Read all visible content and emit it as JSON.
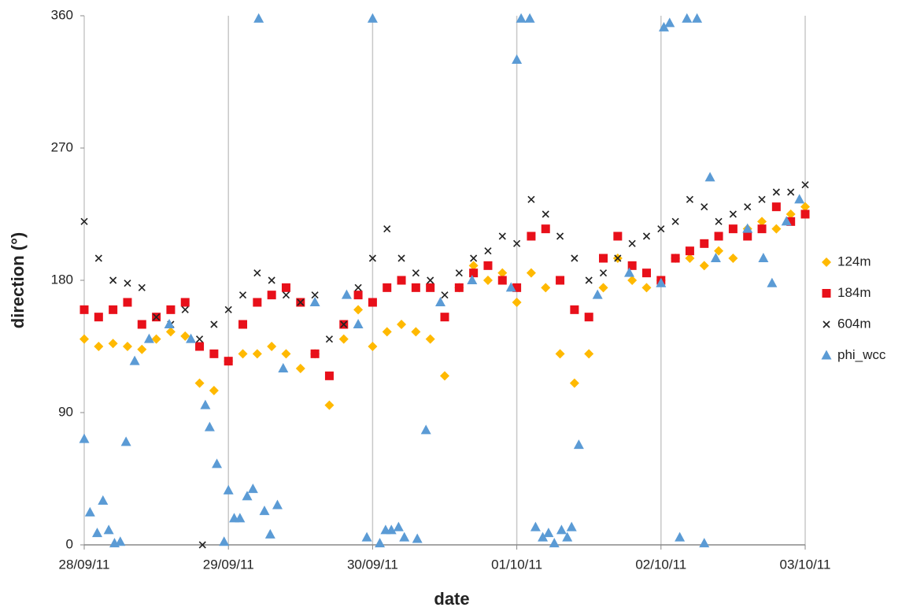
{
  "chart_data": {
    "type": "scatter",
    "x_label": "date",
    "y_label": "direction (°)",
    "xlim": [
      0,
      5
    ],
    "ylim": [
      0,
      360
    ],
    "xticks": [
      {
        "value": 0,
        "label": "28/09/11"
      },
      {
        "value": 1,
        "label": "29/09/11"
      },
      {
        "value": 2,
        "label": "30/09/11"
      },
      {
        "value": 3,
        "label": "01/10/11"
      },
      {
        "value": 4,
        "label": "02/10/11"
      },
      {
        "value": 5,
        "label": "03/10/11"
      }
    ],
    "yticks": [
      0,
      90,
      180,
      270,
      360
    ],
    "grid": "x",
    "legend": "right",
    "series": [
      {
        "name": "124m",
        "color": "#ffb900",
        "marker": "diamond",
        "x": [
          0,
          0.1,
          0.2,
          0.3,
          0.4,
          0.5,
          0.6,
          0.7,
          0.8,
          0.9,
          1,
          1.1,
          1.2,
          1.3,
          1.4,
          1.5,
          1.6,
          1.7,
          1.8,
          1.9,
          2,
          2.1,
          2.2,
          2.3,
          2.4,
          2.5,
          2.6,
          2.7,
          2.8,
          2.9,
          3,
          3.1,
          3.2,
          3.3,
          3.4,
          3.5,
          3.6,
          3.7,
          3.8,
          3.9,
          4,
          4.1,
          4.2,
          4.3,
          4.4,
          4.5,
          4.6,
          4.7,
          4.8,
          4.9,
          5
        ],
        "values": [
          140,
          135,
          137,
          135,
          133,
          140,
          145,
          142,
          110,
          105,
          125,
          130,
          130,
          135,
          130,
          120,
          130,
          95,
          140,
          160,
          135,
          145,
          150,
          145,
          140,
          115,
          175,
          190,
          180,
          185,
          165,
          185,
          175,
          130,
          110,
          130,
          175,
          195,
          180,
          175,
          180,
          195,
          195,
          190,
          200,
          195,
          215,
          220,
          215,
          225,
          230
        ]
      },
      {
        "name": "184m",
        "color": "#e8101a",
        "marker": "square",
        "x": [
          0,
          0.1,
          0.2,
          0.3,
          0.4,
          0.5,
          0.6,
          0.7,
          0.8,
          0.9,
          1,
          1.1,
          1.2,
          1.3,
          1.4,
          1.5,
          1.6,
          1.7,
          1.8,
          1.9,
          2,
          2.1,
          2.2,
          2.3,
          2.4,
          2.5,
          2.6,
          2.7,
          2.8,
          2.9,
          3,
          3.1,
          3.2,
          3.3,
          3.4,
          3.5,
          3.6,
          3.7,
          3.8,
          3.9,
          4,
          4.1,
          4.2,
          4.3,
          4.4,
          4.5,
          4.6,
          4.7,
          4.8,
          4.9,
          5
        ],
        "values": [
          160,
          155,
          160,
          165,
          150,
          155,
          160,
          165,
          135,
          130,
          125,
          150,
          165,
          170,
          175,
          165,
          130,
          115,
          150,
          170,
          165,
          175,
          180,
          175,
          175,
          155,
          175,
          185,
          190,
          180,
          175,
          210,
          215,
          180,
          160,
          155,
          195,
          210,
          190,
          185,
          180,
          195,
          200,
          205,
          210,
          215,
          210,
          215,
          230,
          220,
          225
        ]
      },
      {
        "name": "604m",
        "color": "#222222",
        "marker": "cross",
        "x": [
          0,
          0.1,
          0.2,
          0.3,
          0.4,
          0.5,
          0.6,
          0.7,
          0.8,
          0.9,
          1,
          1.1,
          1.2,
          1.3,
          1.4,
          1.5,
          1.6,
          1.7,
          1.8,
          1.9,
          2,
          2.1,
          2.2,
          2.3,
          2.4,
          2.5,
          2.6,
          2.7,
          2.8,
          2.9,
          3,
          3.1,
          3.2,
          3.3,
          3.4,
          3.5,
          3.6,
          3.7,
          3.8,
          3.9,
          4,
          4.1,
          4.2,
          4.3,
          4.4,
          4.5,
          4.6,
          4.7,
          4.8,
          4.9,
          5,
          0.82
        ],
        "values": [
          220,
          195,
          180,
          178,
          175,
          155,
          150,
          160,
          140,
          150,
          160,
          170,
          185,
          180,
          170,
          165,
          170,
          140,
          150,
          175,
          195,
          215,
          195,
          185,
          180,
          170,
          185,
          195,
          200,
          210,
          205,
          235,
          225,
          210,
          195,
          180,
          185,
          195,
          205,
          210,
          215,
          220,
          235,
          230,
          220,
          225,
          230,
          235,
          240,
          240,
          245,
          0
        ]
      },
      {
        "name": "phi_wcc",
        "color": "#5b9bd5",
        "marker": "triangle",
        "x": [
          0,
          0.04,
          0.09,
          0.13,
          0.17,
          0.21,
          0.25,
          0.29,
          0.35,
          0.45,
          0.59,
          0.74,
          0.84,
          0.87,
          0.92,
          0.97,
          1,
          1.04,
          1.08,
          1.13,
          1.17,
          1.21,
          1.25,
          1.29,
          1.34,
          1.38,
          1.6,
          1.82,
          1.9,
          1.96,
          2,
          2.05,
          2.09,
          2.13,
          2.18,
          2.22,
          2.31,
          2.37,
          2.47,
          2.69,
          2.96,
          3,
          3.03,
          3.09,
          3.13,
          3.18,
          3.22,
          3.26,
          3.31,
          3.35,
          3.38,
          3.43,
          3.56,
          3.78,
          4,
          4.02,
          4.06,
          4.13,
          4.18,
          4.25,
          4.3,
          4.34,
          4.38,
          4.6,
          4.71,
          4.77,
          4.87,
          4.96
        ],
        "values": [
          72,
          22,
          8,
          30,
          10,
          1,
          2,
          70,
          125,
          140,
          150,
          140,
          95,
          80,
          55,
          2,
          37,
          18,
          18,
          33,
          38,
          358,
          23,
          7,
          27,
          120,
          165,
          170,
          150,
          5,
          358,
          1,
          10,
          10,
          12,
          5,
          4,
          78,
          165,
          180,
          175,
          330,
          358,
          358,
          12,
          5,
          8,
          1,
          10,
          5,
          12,
          68,
          170,
          185,
          178,
          352,
          355,
          5,
          358,
          358,
          1,
          250,
          195,
          215,
          195,
          178,
          220,
          235
        ]
      }
    ]
  }
}
